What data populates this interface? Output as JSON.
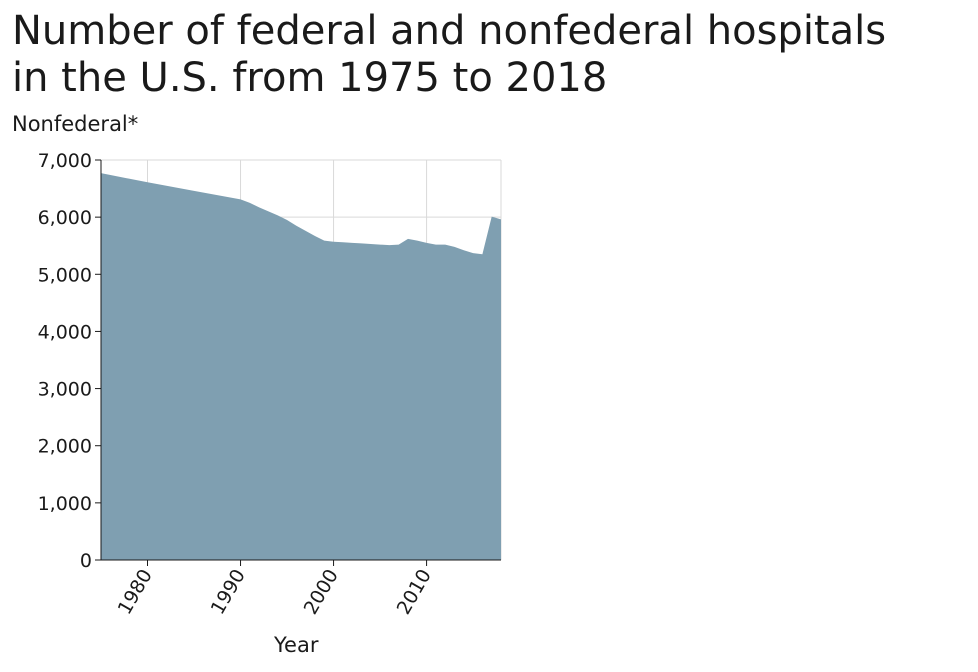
{
  "chart_data": {
    "type": "area",
    "title_lines": [
      "Number of federal and nonfederal hospitals",
      "in the U.S. from 1975 to 2018"
    ],
    "xlabel": "Year",
    "ylabel": "Nonfederal*",
    "xlim": [
      1975,
      2018
    ],
    "ylim": [
      0,
      7000
    ],
    "x_ticks": [
      1980,
      1990,
      2000,
      2010
    ],
    "x_tick_labels": [
      "1980",
      "1990",
      "2000",
      "2010"
    ],
    "y_ticks": [
      0,
      1000,
      2000,
      3000,
      4000,
      5000,
      6000,
      7000
    ],
    "y_tick_labels": [
      "0",
      "1,000",
      "2,000",
      "3,000",
      "4,000",
      "5,000",
      "6,000",
      "7,000"
    ],
    "grid": true,
    "fill_color": "#7f9fb1",
    "x": [
      1975,
      1980,
      1985,
      1990,
      1991,
      1992,
      1993,
      1994,
      1995,
      1996,
      1997,
      1998,
      1999,
      2000,
      2001,
      2002,
      2003,
      2004,
      2005,
      2006,
      2007,
      2008,
      2009,
      2010,
      2011,
      2012,
      2013,
      2014,
      2015,
      2016,
      2017,
      2018
    ],
    "values": [
      6770,
      6610,
      6460,
      6310,
      6250,
      6170,
      6100,
      6030,
      5950,
      5850,
      5760,
      5670,
      5590,
      5570,
      5560,
      5550,
      5540,
      5530,
      5520,
      5510,
      5520,
      5620,
      5590,
      5550,
      5520,
      5520,
      5480,
      5420,
      5370,
      5350,
      6010,
      5960
    ]
  }
}
